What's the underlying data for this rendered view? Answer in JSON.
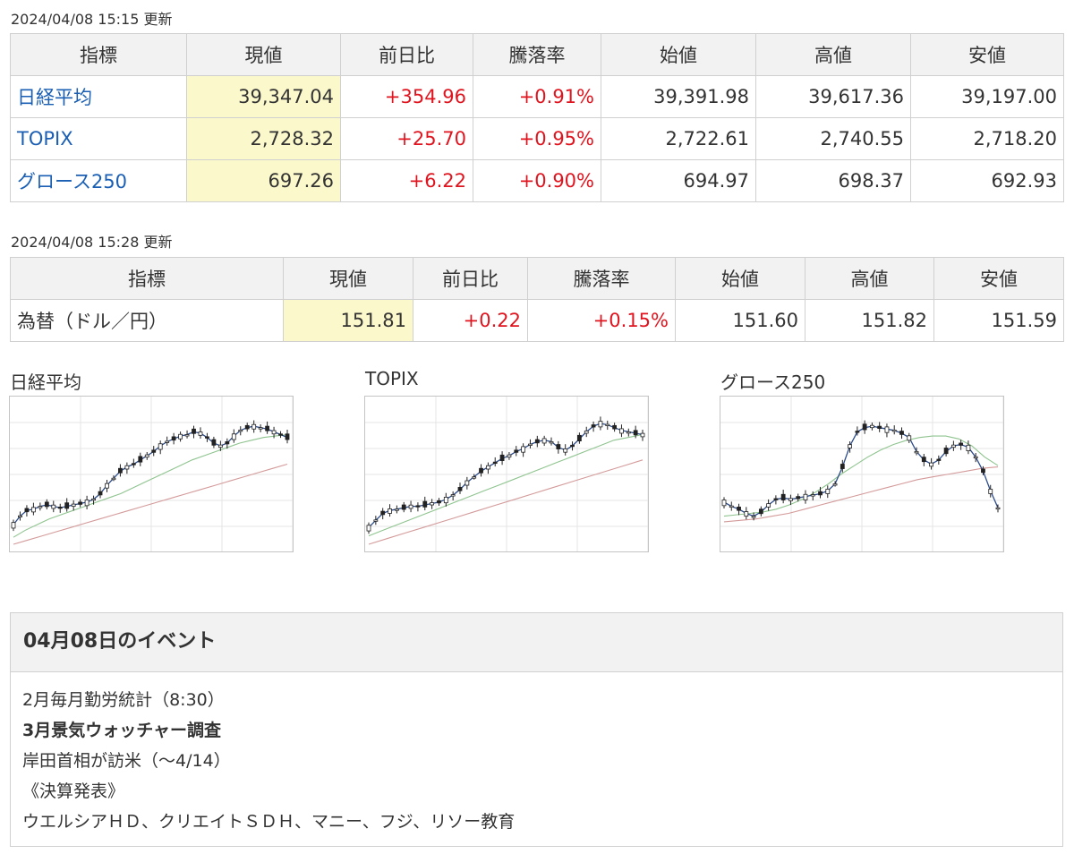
{
  "table1": {
    "updated": "2024/04/08 15:15 更新",
    "headers": [
      "指標",
      "現値",
      "前日比",
      "騰落率",
      "始値",
      "高値",
      "安値"
    ],
    "rows": [
      {
        "name": "日経平均",
        "current": "39,347.04",
        "change": "+354.96",
        "rate": "+0.91%",
        "open": "39,391.98",
        "high": "39,617.36",
        "low": "39,197.00"
      },
      {
        "name": "TOPIX",
        "current": "2,728.32",
        "change": "+25.70",
        "rate": "+0.95%",
        "open": "2,722.61",
        "high": "2,740.55",
        "low": "2,718.20"
      },
      {
        "name": "グロース250",
        "current": "697.26",
        "change": "+6.22",
        "rate": "+0.90%",
        "open": "694.97",
        "high": "698.37",
        "low": "692.93"
      }
    ]
  },
  "table2": {
    "updated": "2024/04/08 15:28 更新",
    "headers": [
      "指標",
      "現値",
      "前日比",
      "騰落率",
      "始値",
      "高値",
      "安値"
    ],
    "rows": [
      {
        "name": "為替（ドル／円）",
        "current": "151.81",
        "change": "+0.22",
        "rate": "+0.15%",
        "open": "151.60",
        "high": "151.82",
        "low": "151.59"
      }
    ]
  },
  "charts": [
    {
      "title": "日経平均"
    },
    {
      "title": "TOPIX"
    },
    {
      "title": "グロース250"
    }
  ],
  "chart_data": [
    {
      "type": "candlestick",
      "title": "日経平均",
      "series": [
        {
          "values": [
            0.14,
            0.2,
            0.24,
            0.25,
            0.27,
            0.28,
            0.27,
            0.26,
            0.27,
            0.28,
            0.29,
            0.3,
            0.32,
            0.36,
            0.42,
            0.47,
            0.52,
            0.55,
            0.57,
            0.6,
            0.63,
            0.66,
            0.7,
            0.73,
            0.75,
            0.77,
            0.78,
            0.8,
            0.79,
            0.76,
            0.72,
            0.7,
            0.72,
            0.77,
            0.81,
            0.83,
            0.84,
            0.83,
            0.82,
            0.8,
            0.78,
            0.76
          ]
        },
        {
          "values": [
            0.05,
            0.1,
            0.14,
            0.18,
            0.21,
            0.24,
            0.27,
            0.3,
            0.33,
            0.36,
            0.4,
            0.44,
            0.48,
            0.52,
            0.56,
            0.6,
            0.63,
            0.66,
            0.69,
            0.72,
            0.74,
            0.76,
            0.77,
            0.78
          ]
        },
        {
          "values": [
            0.0,
            0.03,
            0.06,
            0.09,
            0.12,
            0.15,
            0.18,
            0.21,
            0.24,
            0.27,
            0.3,
            0.33,
            0.36,
            0.39,
            0.42,
            0.45,
            0.48,
            0.51,
            0.54,
            0.57
          ]
        }
      ]
    },
    {
      "type": "candlestick",
      "title": "TOPIX",
      "series": [
        {
          "values": [
            0.12,
            0.17,
            0.22,
            0.24,
            0.25,
            0.26,
            0.27,
            0.27,
            0.28,
            0.29,
            0.3,
            0.32,
            0.35,
            0.39,
            0.44,
            0.48,
            0.52,
            0.55,
            0.58,
            0.61,
            0.63,
            0.66,
            0.68,
            0.71,
            0.73,
            0.74,
            0.73,
            0.69,
            0.67,
            0.7,
            0.75,
            0.8,
            0.84,
            0.86,
            0.85,
            0.83,
            0.81,
            0.8,
            0.79,
            0.78
          ]
        },
        {
          "values": [
            0.06,
            0.1,
            0.14,
            0.18,
            0.22,
            0.26,
            0.3,
            0.34,
            0.38,
            0.42,
            0.46,
            0.5,
            0.54,
            0.58,
            0.62,
            0.66,
            0.7,
            0.74,
            0.76,
            0.78
          ]
        },
        {
          "values": [
            0.0,
            0.04,
            0.08,
            0.12,
            0.16,
            0.2,
            0.24,
            0.28,
            0.32,
            0.36,
            0.4,
            0.44,
            0.48,
            0.52,
            0.56,
            0.6
          ]
        }
      ]
    },
    {
      "type": "candlestick",
      "title": "グロース250",
      "series": [
        {
          "values": [
            0.3,
            0.27,
            0.25,
            0.22,
            0.2,
            0.23,
            0.28,
            0.32,
            0.33,
            0.32,
            0.33,
            0.34,
            0.35,
            0.36,
            0.38,
            0.43,
            0.55,
            0.7,
            0.8,
            0.83,
            0.84,
            0.83,
            0.82,
            0.81,
            0.79,
            0.76,
            0.66,
            0.6,
            0.57,
            0.6,
            0.66,
            0.7,
            0.71,
            0.69,
            0.62,
            0.52,
            0.38,
            0.26
          ]
        },
        {
          "values": [
            0.2,
            0.21,
            0.22,
            0.23,
            0.25,
            0.28,
            0.32,
            0.37,
            0.43,
            0.5,
            0.56,
            0.62,
            0.67,
            0.71,
            0.74,
            0.76,
            0.77,
            0.77,
            0.75,
            0.7,
            0.62,
            0.56
          ]
        },
        {
          "values": [
            0.16,
            0.17,
            0.18,
            0.2,
            0.22,
            0.25,
            0.28,
            0.31,
            0.34,
            0.37,
            0.4,
            0.43,
            0.46,
            0.48,
            0.5,
            0.52,
            0.54,
            0.55
          ]
        }
      ]
    }
  ],
  "events": {
    "title": "04月08日のイベント",
    "lines": [
      {
        "text": "2月毎月勤労統計（8:30）",
        "bold": false
      },
      {
        "text": "3月景気ウォッチャー調査",
        "bold": true
      },
      {
        "text": "岸田首相が訪米（〜4/14）",
        "bold": false
      },
      {
        "text": "《決算発表》",
        "bold": false
      },
      {
        "text": "ウエルシアＨＤ、クリエイトＳＤＨ、マニー、フジ、リソー教育",
        "bold": false
      }
    ]
  }
}
